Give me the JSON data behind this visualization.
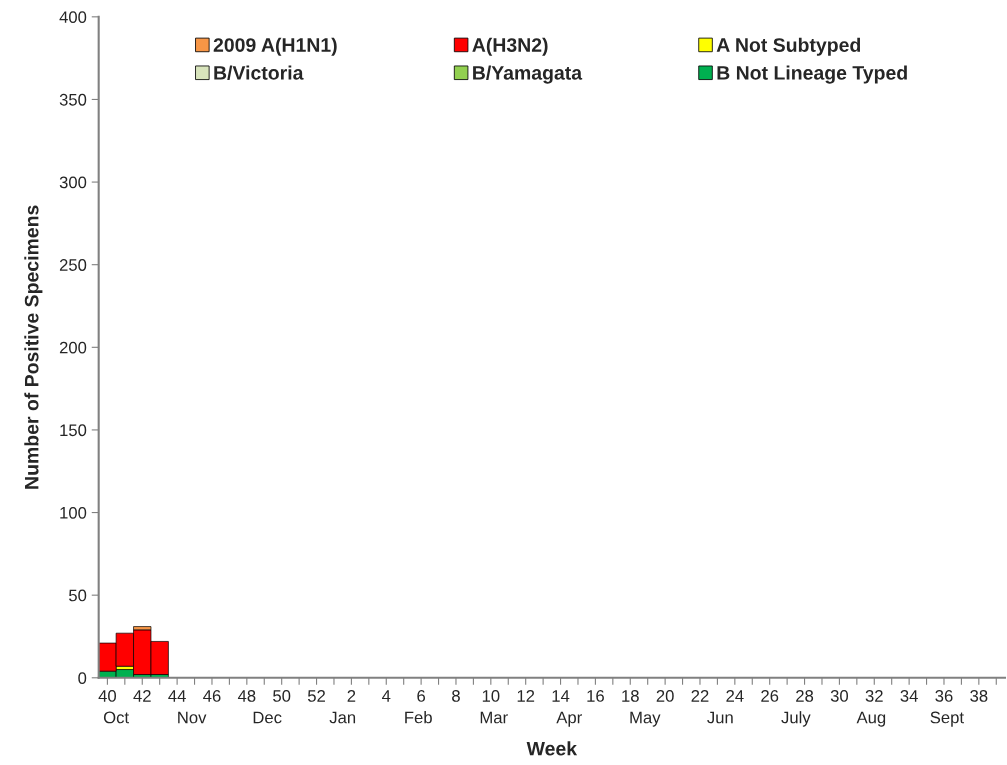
{
  "chart_data": {
    "type": "bar",
    "stacked": true,
    "xlabel": "Week",
    "ylabel": "Number of Positive Specimens",
    "categories": [
      "40",
      null,
      "42",
      null,
      "44",
      null,
      "46",
      null,
      "48",
      null,
      "50",
      null,
      "52",
      null,
      "2",
      null,
      "4",
      null,
      "6",
      null,
      "8",
      null,
      "10",
      null,
      "12",
      null,
      "14",
      null,
      "16",
      null,
      "18",
      null,
      "20",
      null,
      "22",
      null,
      "24",
      null,
      "26",
      null,
      "28",
      null,
      "30",
      null,
      "32",
      null,
      "34",
      null,
      "36",
      null,
      "38",
      null
    ],
    "series": [
      {
        "name": "B Not Lineage Typed",
        "color": "#00b050",
        "values": [
          4,
          5,
          2,
          2,
          null,
          null,
          null,
          null,
          null,
          null,
          null,
          null,
          null,
          null,
          null,
          null,
          null,
          null,
          null,
          null,
          null,
          null,
          null,
          null,
          null,
          null,
          null,
          null,
          null,
          null,
          null,
          null,
          null,
          null,
          null,
          null,
          null,
          null,
          null,
          null,
          null,
          null,
          null,
          null,
          null,
          null,
          null,
          null,
          null,
          null,
          null,
          null
        ]
      },
      {
        "name": "B/Yamagata",
        "color": "#92d050",
        "values": [
          null,
          null,
          null,
          null,
          null,
          null,
          null,
          null,
          null,
          null,
          null,
          null,
          null,
          null,
          null,
          null,
          null,
          null,
          null,
          null,
          null,
          null,
          null,
          null,
          null,
          null,
          null,
          null,
          null,
          null,
          null,
          null,
          null,
          null,
          null,
          null,
          null,
          null,
          null,
          null,
          null,
          null,
          null,
          null,
          null,
          null,
          null,
          null,
          null,
          null,
          null,
          null
        ]
      },
      {
        "name": "B/Victoria",
        "color": "#d8e4bc",
        "values": [
          null,
          null,
          null,
          null,
          null,
          null,
          null,
          null,
          null,
          null,
          null,
          null,
          null,
          null,
          null,
          null,
          null,
          null,
          null,
          null,
          null,
          null,
          null,
          null,
          null,
          null,
          null,
          null,
          null,
          null,
          null,
          null,
          null,
          null,
          null,
          null,
          null,
          null,
          null,
          null,
          null,
          null,
          null,
          null,
          null,
          null,
          null,
          null,
          null,
          null,
          null,
          null
        ]
      },
      {
        "name": "A Not Subtyped",
        "color": "#ffff00",
        "values": [
          null,
          2,
          null,
          null,
          null,
          null,
          null,
          null,
          null,
          null,
          null,
          null,
          null,
          null,
          null,
          null,
          null,
          null,
          null,
          null,
          null,
          null,
          null,
          null,
          null,
          null,
          null,
          null,
          null,
          null,
          null,
          null,
          null,
          null,
          null,
          null,
          null,
          null,
          null,
          null,
          null,
          null,
          null,
          null,
          null,
          null,
          null,
          null,
          null,
          null,
          null,
          null
        ]
      },
      {
        "name": "A(H3N2)",
        "color": "#ff0000",
        "values": [
          17,
          20,
          27,
          20,
          null,
          null,
          null,
          null,
          null,
          null,
          null,
          null,
          null,
          null,
          null,
          null,
          null,
          null,
          null,
          null,
          null,
          null,
          null,
          null,
          null,
          null,
          null,
          null,
          null,
          null,
          null,
          null,
          null,
          null,
          null,
          null,
          null,
          null,
          null,
          null,
          null,
          null,
          null,
          null,
          null,
          null,
          null,
          null,
          null,
          null,
          null,
          null
        ]
      },
      {
        "name": "2009 A(H1N1)",
        "color": "#f79646",
        "values": [
          null,
          null,
          2,
          null,
          null,
          null,
          null,
          null,
          null,
          null,
          null,
          null,
          null,
          null,
          null,
          null,
          null,
          null,
          null,
          null,
          null,
          null,
          null,
          null,
          null,
          null,
          null,
          null,
          null,
          null,
          null,
          null,
          null,
          null,
          null,
          null,
          null,
          null,
          null,
          null,
          null,
          null,
          null,
          null,
          null,
          null,
          null,
          null,
          null,
          null,
          null,
          null
        ]
      }
    ],
    "ylim": [
      0,
      400
    ],
    "yticks": [
      0,
      50,
      100,
      150,
      200,
      250,
      300,
      350,
      400
    ],
    "grid": false,
    "legend": "top",
    "annotations": [
      "Oct",
      "Nov",
      "Dec",
      "Jan",
      "Feb",
      "Mar",
      "Apr",
      "May",
      "Jun",
      "July",
      "Aug",
      "Sept"
    ]
  }
}
